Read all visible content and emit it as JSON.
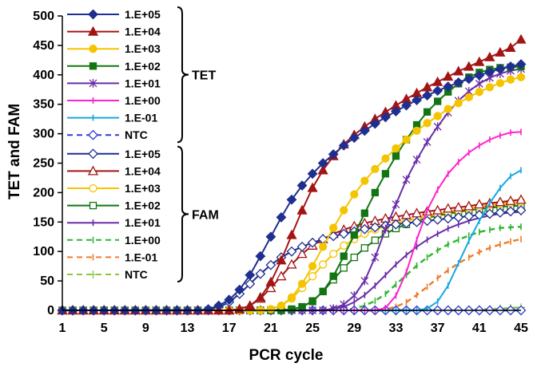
{
  "chart_data": {
    "type": "line",
    "xlabel": "PCR cycle",
    "ylabel": "TET and FAM",
    "xlim": [
      1,
      45
    ],
    "ylim": [
      0,
      500
    ],
    "xticks": [
      1,
      5,
      9,
      13,
      17,
      21,
      25,
      29,
      33,
      37,
      41,
      45
    ],
    "yticks": [
      0,
      50,
      100,
      150,
      200,
      250,
      300,
      350,
      400,
      450,
      500
    ],
    "grid": false,
    "legend_position": "top-left",
    "groups": [
      {
        "label": "TET",
        "series": [
          0,
          1,
          2,
          3,
          4,
          5,
          6,
          7
        ]
      },
      {
        "label": "FAM",
        "series": [
          8,
          9,
          10,
          11,
          12,
          13,
          14,
          15
        ]
      }
    ],
    "series": [
      {
        "name": "1.E+05",
        "group": "TET",
        "color": "#1f2f8f",
        "marker": "diamond",
        "filled": true,
        "dash": "solid",
        "y": [
          0,
          0,
          0,
          0,
          0,
          0,
          0,
          0,
          0,
          0,
          0,
          0,
          0,
          0,
          2,
          8,
          18,
          35,
          60,
          92,
          125,
          158,
          188,
          212,
          232,
          250,
          265,
          280,
          293,
          305,
          317,
          328,
          338,
          348,
          357,
          365,
          373,
          380,
          387,
          393,
          399,
          405,
          410,
          414,
          418
        ]
      },
      {
        "name": "1.E+04",
        "group": "TET",
        "color": "#a31515",
        "marker": "triangle",
        "filled": true,
        "dash": "solid",
        "y": [
          0,
          0,
          0,
          0,
          0,
          0,
          0,
          0,
          0,
          0,
          0,
          0,
          0,
          0,
          0,
          0,
          0,
          2,
          8,
          22,
          48,
          85,
          128,
          170,
          208,
          238,
          262,
          282,
          298,
          312,
          325,
          337,
          348,
          359,
          369,
          379,
          388,
          397,
          406,
          414,
          422,
          430,
          438,
          446,
          460
        ]
      },
      {
        "name": "1.E+03",
        "group": "TET",
        "color": "#f5c400",
        "marker": "circle",
        "filled": true,
        "dash": "solid",
        "y": [
          0,
          0,
          0,
          0,
          0,
          0,
          0,
          0,
          0,
          0,
          0,
          0,
          0,
          0,
          0,
          0,
          0,
          0,
          0,
          0,
          2,
          8,
          22,
          45,
          75,
          108,
          140,
          170,
          197,
          220,
          240,
          258,
          275,
          290,
          305,
          318,
          330,
          342,
          352,
          362,
          371,
          379,
          386,
          392,
          396
        ]
      },
      {
        "name": "1.E+02",
        "group": "TET",
        "color": "#127512",
        "marker": "square",
        "filled": true,
        "dash": "solid",
        "y": [
          0,
          0,
          0,
          0,
          0,
          0,
          0,
          0,
          0,
          0,
          0,
          0,
          0,
          0,
          0,
          0,
          0,
          0,
          0,
          0,
          0,
          0,
          2,
          6,
          15,
          32,
          58,
          92,
          128,
          165,
          200,
          232,
          262,
          290,
          315,
          337,
          355,
          371,
          385,
          396,
          404,
          409,
          412,
          413,
          414
        ]
      },
      {
        "name": "1.E+01",
        "group": "TET",
        "color": "#6a2ca8",
        "marker": "star",
        "filled": false,
        "dash": "solid",
        "y": [
          0,
          0,
          0,
          0,
          0,
          0,
          0,
          0,
          0,
          0,
          0,
          0,
          0,
          0,
          0,
          0,
          0,
          0,
          0,
          0,
          0,
          0,
          0,
          0,
          0,
          0,
          3,
          10,
          25,
          50,
          90,
          138,
          180,
          222,
          256,
          286,
          312,
          336,
          356,
          372,
          385,
          395,
          402,
          407,
          410
        ]
      },
      {
        "name": "1.E+00",
        "group": "TET",
        "color": "#ff22cc",
        "marker": "tick",
        "filled": false,
        "dash": "solid",
        "y": [
          0,
          0,
          0,
          0,
          0,
          0,
          0,
          0,
          0,
          0,
          0,
          0,
          0,
          0,
          0,
          0,
          0,
          0,
          0,
          0,
          0,
          0,
          0,
          0,
          0,
          0,
          0,
          0,
          0,
          0,
          0,
          4,
          25,
          65,
          120,
          170,
          205,
          232,
          252,
          268,
          280,
          290,
          297,
          302,
          303
        ]
      },
      {
        "name": "1.E-01",
        "group": "TET",
        "color": "#18a8e0",
        "marker": "tick",
        "filled": false,
        "dash": "solid",
        "y": [
          0,
          0,
          0,
          0,
          0,
          0,
          0,
          0,
          0,
          0,
          0,
          0,
          0,
          0,
          0,
          0,
          0,
          0,
          0,
          0,
          0,
          0,
          0,
          0,
          0,
          0,
          0,
          0,
          0,
          0,
          0,
          0,
          0,
          0,
          0,
          3,
          15,
          42,
          80,
          118,
          152,
          182,
          208,
          228,
          238
        ]
      },
      {
        "name": "NTC",
        "group": "TET",
        "color": "#2a3dd0",
        "marker": "diamond",
        "filled": false,
        "dash": "dashed",
        "y": [
          0,
          0,
          0,
          0,
          0,
          0,
          0,
          0,
          0,
          0,
          0,
          0,
          0,
          0,
          0,
          0,
          0,
          0,
          0,
          0,
          0,
          0,
          0,
          0,
          0,
          0,
          0,
          0,
          0,
          0,
          0,
          0,
          0,
          0,
          0,
          0,
          0,
          0,
          0,
          0,
          0,
          0,
          0,
          0,
          0
        ]
      },
      {
        "name": "1.E+05",
        "group": "FAM",
        "color": "#1f2f8f",
        "marker": "diamond",
        "filled": false,
        "dash": "solid",
        "y": [
          0,
          0,
          0,
          0,
          0,
          0,
          0,
          0,
          0,
          0,
          0,
          0,
          0,
          0,
          1,
          5,
          14,
          28,
          45,
          62,
          77,
          90,
          100,
          108,
          115,
          121,
          126,
          130,
          134,
          138,
          141,
          144,
          146,
          148,
          150,
          152,
          154,
          156,
          158,
          160,
          162,
          164,
          166,
          168,
          170
        ]
      },
      {
        "name": "1.E+04",
        "group": "FAM",
        "color": "#a31515",
        "marker": "triangle",
        "filled": false,
        "dash": "solid",
        "y": [
          0,
          0,
          0,
          0,
          0,
          0,
          0,
          0,
          0,
          0,
          0,
          0,
          0,
          0,
          0,
          0,
          0,
          2,
          8,
          20,
          38,
          58,
          78,
          96,
          110,
          121,
          130,
          137,
          143,
          148,
          152,
          156,
          159,
          162,
          165,
          168,
          170,
          173,
          175,
          177,
          180,
          182,
          184,
          186,
          188
        ]
      },
      {
        "name": "1.E+03",
        "group": "FAM",
        "color": "#f5c400",
        "marker": "circle",
        "filled": false,
        "dash": "solid",
        "y": [
          0,
          0,
          0,
          0,
          0,
          0,
          0,
          0,
          0,
          0,
          0,
          0,
          0,
          0,
          0,
          0,
          0,
          0,
          0,
          0,
          2,
          8,
          20,
          38,
          58,
          78,
          96,
          110,
          121,
          130,
          137,
          143,
          148,
          152,
          156,
          160,
          164,
          167,
          170,
          173,
          176,
          179,
          181,
          183,
          185
        ]
      },
      {
        "name": "1.E+02",
        "group": "FAM",
        "color": "#127512",
        "marker": "square",
        "filled": false,
        "dash": "solid",
        "y": [
          0,
          0,
          0,
          0,
          0,
          0,
          0,
          0,
          0,
          0,
          0,
          0,
          0,
          0,
          0,
          0,
          0,
          0,
          0,
          0,
          0,
          0,
          2,
          6,
          16,
          32,
          52,
          72,
          90,
          106,
          119,
          130,
          139,
          146,
          152,
          157,
          161,
          164,
          167,
          170,
          172,
          174,
          176,
          177,
          178
        ]
      },
      {
        "name": "1.E+01",
        "group": "FAM",
        "color": "#6a2ca8",
        "marker": "tick",
        "filled": false,
        "dash": "solid",
        "y": [
          0,
          0,
          0,
          0,
          0,
          0,
          0,
          0,
          0,
          0,
          0,
          0,
          0,
          0,
          0,
          0,
          0,
          0,
          0,
          0,
          0,
          0,
          0,
          0,
          0,
          0,
          2,
          6,
          14,
          26,
          42,
          60,
          78,
          94,
          108,
          120,
          130,
          139,
          146,
          152,
          157,
          161,
          164,
          166,
          167
        ]
      },
      {
        "name": "1.E+00",
        "group": "FAM",
        "color": "#2db52d",
        "marker": "tick",
        "filled": false,
        "dash": "dashed",
        "y": [
          0,
          0,
          0,
          0,
          0,
          0,
          0,
          0,
          0,
          0,
          0,
          0,
          0,
          0,
          0,
          0,
          0,
          0,
          0,
          0,
          0,
          0,
          0,
          0,
          0,
          0,
          0,
          1,
          3,
          8,
          16,
          28,
          44,
          60,
          76,
          90,
          102,
          112,
          120,
          127,
          133,
          137,
          140,
          141,
          142
        ]
      },
      {
        "name": "1.E-01",
        "group": "FAM",
        "color": "#f07a2a",
        "marker": "tick",
        "filled": false,
        "dash": "dashed",
        "y": [
          0,
          0,
          0,
          0,
          0,
          0,
          0,
          0,
          0,
          0,
          0,
          0,
          0,
          0,
          0,
          0,
          0,
          0,
          0,
          0,
          0,
          0,
          0,
          0,
          0,
          0,
          0,
          0,
          0,
          0,
          0,
          2,
          6,
          14,
          26,
          40,
          55,
          68,
          80,
          90,
          99,
          106,
          112,
          117,
          121
        ]
      },
      {
        "name": "NTC",
        "group": "FAM",
        "color": "#8cc63f",
        "marker": "plus",
        "filled": false,
        "dash": "dashed",
        "y": [
          0,
          0,
          0,
          0,
          0,
          0,
          0,
          0,
          0,
          0,
          0,
          0,
          0,
          0,
          0,
          0,
          0,
          0,
          0,
          0,
          0,
          0,
          0,
          0,
          0,
          0,
          0,
          0,
          0,
          0,
          0,
          0,
          0,
          0,
          0,
          0,
          0,
          0,
          1,
          1,
          2,
          2,
          3,
          4,
          5
        ]
      }
    ]
  }
}
